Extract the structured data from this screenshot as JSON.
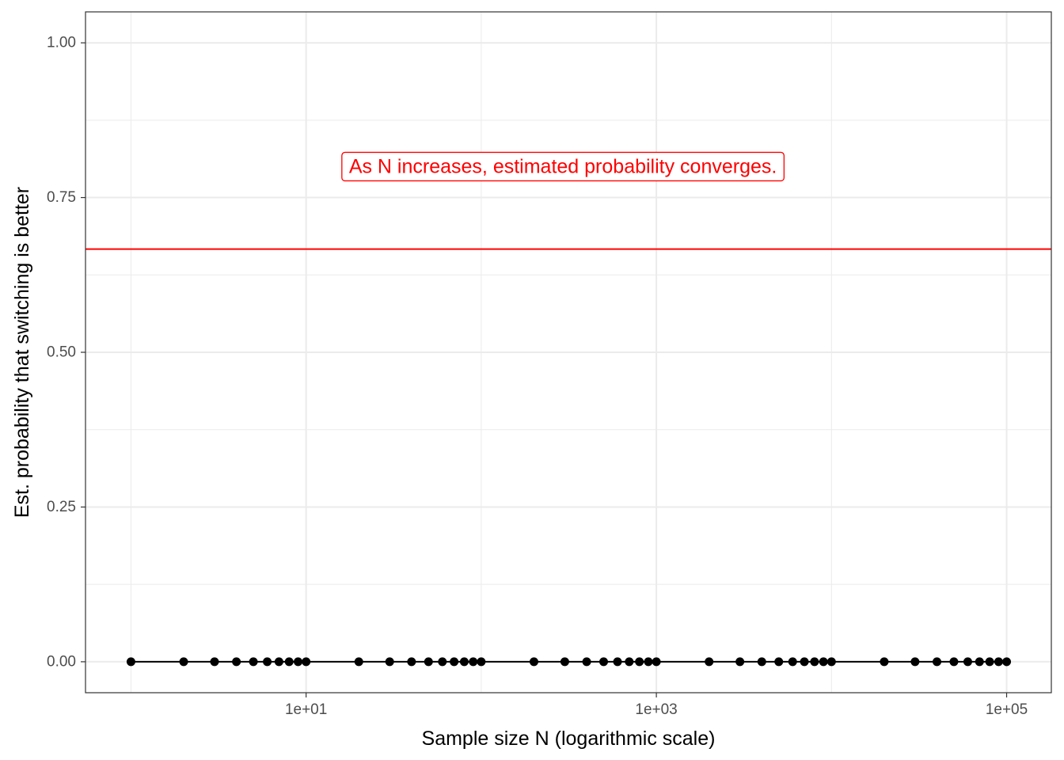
{
  "chart_data": {
    "type": "line",
    "xlabel": "Sample size N (logarithmic scale)",
    "ylabel": "Est. probability that switching is better",
    "x_scale": "log10",
    "xlim": [
      0.55,
      180000
    ],
    "ylim": [
      -0.05,
      1.05
    ],
    "x_ticks": [
      10,
      1000,
      100000
    ],
    "x_tick_labels": [
      "1e+01",
      "1e+03",
      "1e+05"
    ],
    "y_ticks": [
      0,
      0.25,
      0.5,
      0.75,
      1
    ],
    "y_tick_labels": [
      "0.00",
      "0.25",
      "0.50",
      "0.75",
      "1.00"
    ],
    "grid": true,
    "series": [
      {
        "color": "#000000",
        "x": [
          1,
          2,
          3,
          4,
          5,
          6,
          7,
          8,
          9,
          10,
          20,
          30,
          40,
          50,
          60,
          70,
          80,
          90,
          100,
          200,
          300,
          400,
          500,
          600,
          700,
          800,
          900,
          1000,
          2000,
          3000,
          4000,
          5000,
          6000,
          7000,
          8000,
          9000,
          10000,
          20000,
          30000,
          40000,
          50000,
          60000,
          70000,
          80000,
          90000,
          100000
        ],
        "y": [
          0,
          0,
          0,
          0,
          0,
          0,
          0,
          0,
          0,
          0,
          0,
          0,
          0,
          0,
          0,
          0,
          0,
          0,
          0,
          0,
          0,
          0,
          0,
          0,
          0,
          0,
          0,
          0,
          0,
          0,
          0,
          0,
          0,
          0,
          0,
          0,
          0,
          0,
          0,
          0,
          0,
          0,
          0,
          0,
          0,
          0
        ]
      }
    ],
    "reference_line": {
      "y": 0.6667,
      "color": "#ff0000"
    },
    "annotation": {
      "text": "As N increases, estimated probability converges.",
      "x": 1000,
      "y": 0.8,
      "color": "#ff0000"
    }
  }
}
